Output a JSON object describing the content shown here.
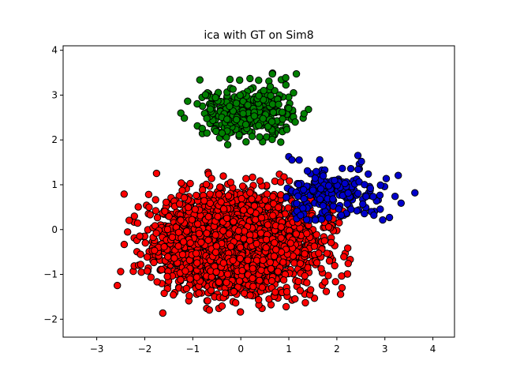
{
  "chart_data": {
    "type": "scatter",
    "title": "ica with GT on Sim8",
    "xlabel": "",
    "ylabel": "",
    "xlim": [
      -3.7,
      4.45
    ],
    "ylim": [
      -2.4,
      4.1
    ],
    "xticks": [
      -3,
      -2,
      -1,
      0,
      1,
      2,
      3,
      4
    ],
    "yticks": [
      -2,
      -1,
      0,
      1,
      2,
      3,
      4
    ],
    "grid": false,
    "marker_edge_color": "#000000",
    "series": [
      {
        "color": "#ff0000",
        "count": 2600,
        "center": [
          -0.1,
          -0.3
        ],
        "std": [
          0.8,
          0.55
        ],
        "x_range": [
          -3.4,
          2.3
        ],
        "y_range": [
          -2.1,
          1.4
        ]
      },
      {
        "color": "#0000cc",
        "count": 200,
        "center": [
          1.9,
          0.8
        ],
        "std": [
          0.55,
          0.3
        ],
        "x_range": [
          0.9,
          4.1
        ],
        "y_range": [
          0.2,
          2.0
        ]
      },
      {
        "color": "#008000",
        "count": 400,
        "center": [
          0.15,
          2.6
        ],
        "std": [
          0.5,
          0.3
        ],
        "x_range": [
          -2.0,
          1.8
        ],
        "y_range": [
          1.85,
          3.8
        ]
      }
    ]
  }
}
